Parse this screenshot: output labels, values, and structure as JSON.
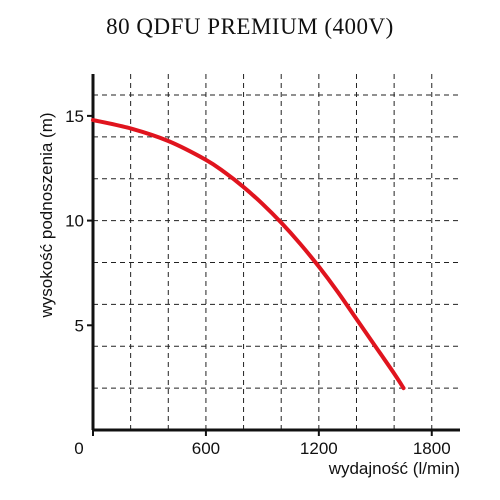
{
  "chart_data": {
    "type": "line",
    "title": "80 QDFU PREMIUM (400V)",
    "xlabel": "wydajność (l/min)",
    "ylabel": "wysokość podnoszenia (m)",
    "xlim": [
      0,
      1950
    ],
    "ylim": [
      0,
      17
    ],
    "x_ticks": [
      0,
      600,
      1200,
      1800
    ],
    "y_ticks": [
      5,
      10,
      15
    ],
    "x_tick_labels": [
      "0",
      "600",
      "1200",
      "1800"
    ],
    "y_tick_labels": [
      "5",
      "10",
      "15"
    ],
    "x_grid": [
      200,
      400,
      600,
      800,
      1000,
      1200,
      1400,
      1600,
      1800
    ],
    "y_grid": [
      2,
      4,
      6,
      8,
      10,
      12,
      14,
      16
    ],
    "grid": true,
    "series": [
      {
        "color": "#e0141e",
        "x": [
          0,
          200,
          400,
          600,
          700,
          800,
          900,
          1000,
          1100,
          1200,
          1300,
          1400,
          1500,
          1600,
          1650
        ],
        "y": [
          14.8,
          14.4,
          13.8,
          12.9,
          12.3,
          11.6,
          10.8,
          9.9,
          8.9,
          7.8,
          6.6,
          5.3,
          4.0,
          2.7,
          2.0
        ]
      }
    ]
  }
}
